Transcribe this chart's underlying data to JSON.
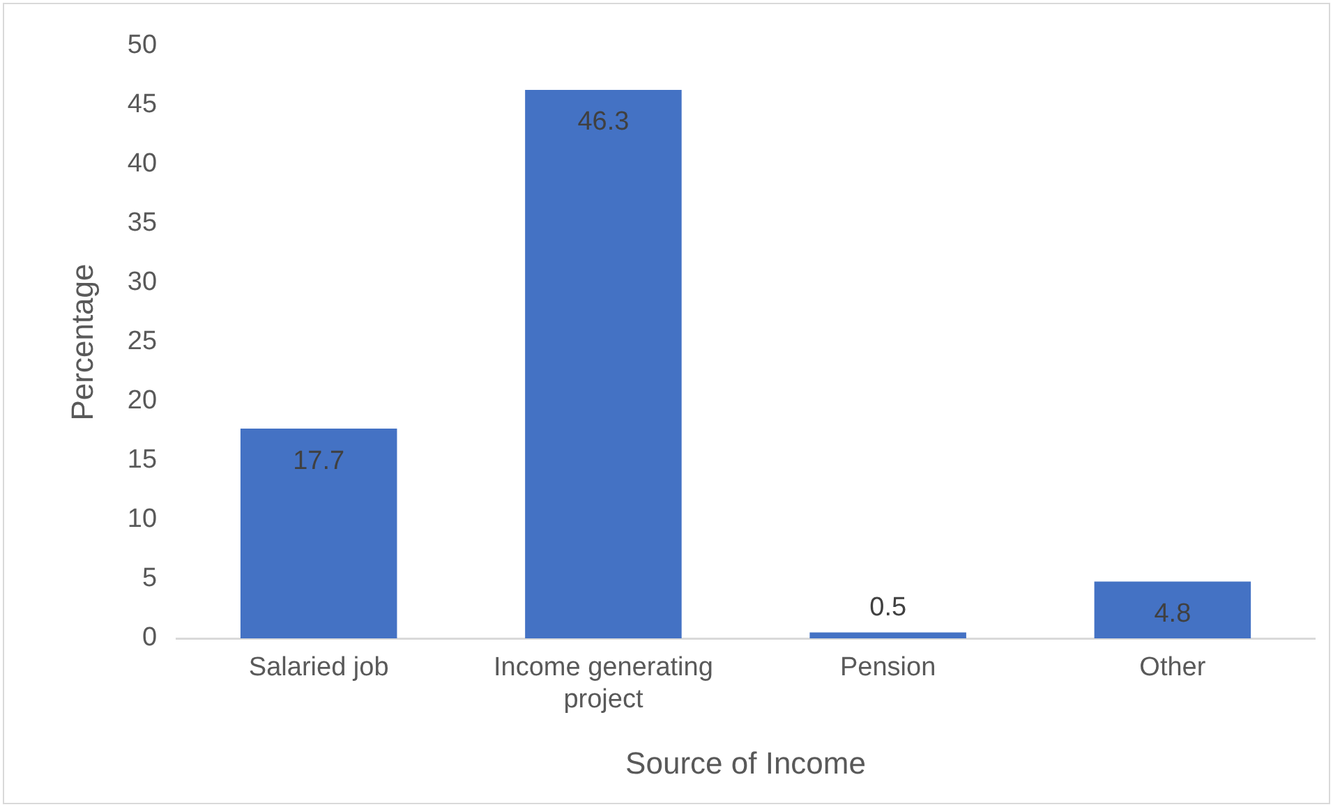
{
  "chart_data": {
    "type": "bar",
    "xlabel": "Source of Income",
    "ylabel": "Percentage",
    "categories": [
      "Salaried job",
      "Income generating project",
      "Pension",
      "Other"
    ],
    "values": [
      17.7,
      46.3,
      0.5,
      4.8
    ],
    "color": "#4472c4",
    "ylim": [
      0,
      50
    ],
    "yticks": [
      0,
      5,
      10,
      15,
      20,
      25,
      30,
      35,
      40,
      45,
      50
    ],
    "grid": false,
    "legend": false,
    "data_labels": true
  }
}
